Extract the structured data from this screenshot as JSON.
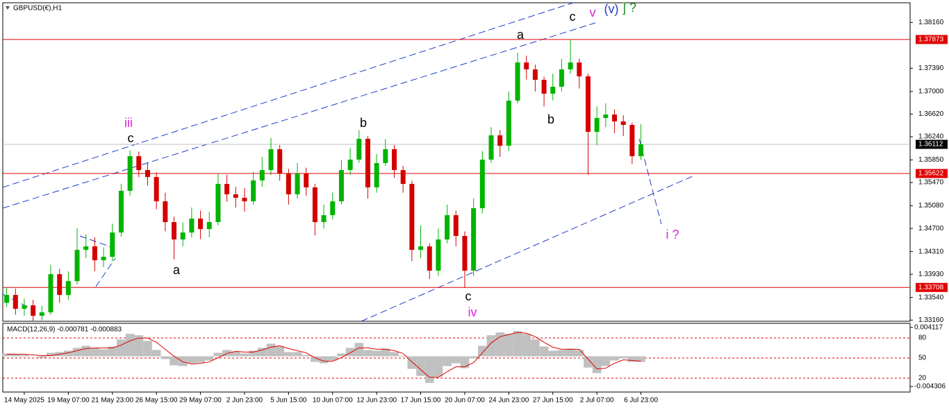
{
  "chart_data": [
    {
      "type": "candlestick",
      "title": "GBPUSD(€),H1",
      "categories": [
        null,
        null,
        "14 May 2025",
        null,
        null,
        null,
        null,
        "19 May 07:00",
        null,
        null,
        null,
        null,
        "21 May 23:00",
        null,
        null,
        null,
        null,
        "26 May 15:00",
        null,
        null,
        null,
        null,
        "29 May 07:00",
        null,
        null,
        null,
        null,
        "2 Jun 23:00",
        null,
        null,
        null,
        null,
        "5 Jun 15:00",
        null,
        null,
        null,
        null,
        "10 Jun 07:00",
        null,
        null,
        null,
        null,
        "12 Jun 23:00",
        null,
        null,
        null,
        null,
        "17 Jun 15:00",
        null,
        null,
        null,
        null,
        "20 Jun 07:00",
        null,
        null,
        null,
        null,
        "24 Jun 23:00",
        null,
        null,
        null,
        null,
        "27 Jun 15:00",
        null,
        null,
        null,
        null,
        "2 Jul 07:00",
        null,
        null,
        null,
        null,
        "6 Jul 23:00"
      ],
      "open": [
        1.3345,
        1.33582,
        1.33349,
        1.33407,
        1.33232,
        1.3329,
        1.33931,
        1.33582,
        1.33815,
        1.34339,
        1.34398,
        1.34165,
        1.34223,
        1.34631,
        1.35331,
        1.35913,
        1.3568,
        1.35563,
        1.35155,
        1.34806,
        1.34514,
        1.34631,
        1.34864,
        1.34689,
        1.34806,
        1.35447,
        1.35272,
        1.35214,
        1.35155,
        1.35505,
        1.3568,
        1.3603,
        1.35622,
        1.35272,
        1.35622,
        1.35389,
        1.34806,
        1.34922,
        1.35155,
        1.3568,
        1.35855,
        1.36205,
        1.35389,
        1.35797,
        1.3603,
        1.3568,
        1.35447,
        1.34339,
        1.34398,
        1.3399,
        1.34514,
        1.34922,
        1.34573,
        1.3399,
        1.35039,
        1.35855,
        1.36263,
        1.36088,
        1.36846,
        1.37487,
        1.37371,
        1.37196,
        1.36963,
        1.3708,
        1.37371,
        1.37487,
        1.37254,
        1.36322,
        1.36555,
        1.36613,
        1.36497,
        1.36438,
        1.35913
      ],
      "high": [
        1.337,
        1.3369,
        1.3352,
        1.335,
        1.334,
        1.3409,
        1.3402,
        1.3398,
        1.347,
        1.346,
        1.3455,
        1.3438,
        1.3478,
        1.3545,
        1.3601,
        1.3599,
        1.358,
        1.3564,
        1.353,
        1.349,
        1.348,
        1.3505,
        1.35,
        1.3498,
        1.3562,
        1.356,
        1.354,
        1.3538,
        1.3565,
        1.359,
        1.3622,
        1.361,
        1.357,
        1.358,
        1.3572,
        1.3545,
        1.351,
        1.353,
        1.3585,
        1.3605,
        1.3635,
        1.3625,
        1.3595,
        1.362,
        1.361,
        1.3575,
        1.355,
        1.3475,
        1.3445,
        1.347,
        1.351,
        1.35,
        1.3465,
        1.352,
        1.36,
        1.364,
        1.3635,
        1.37,
        1.3765,
        1.376,
        1.3745,
        1.3725,
        1.373,
        1.3755,
        1.3787,
        1.3755,
        1.373,
        1.3675,
        1.368,
        1.367,
        1.366,
        1.3648,
        1.3645
      ],
      "low": [
        1.3338,
        1.3325,
        1.3323,
        1.3315,
        1.3316,
        1.3325,
        1.3345,
        1.335,
        1.3376,
        1.342,
        1.3398,
        1.3405,
        1.3415,
        1.3456,
        1.3525,
        1.3556,
        1.3542,
        1.3502,
        1.3465,
        1.3418,
        1.344,
        1.3455,
        1.3452,
        1.3455,
        1.3475,
        1.3515,
        1.3505,
        1.3498,
        1.351,
        1.354,
        1.356,
        1.355,
        1.351,
        1.352,
        1.3525,
        1.3458,
        1.347,
        1.3485,
        1.351,
        1.356,
        1.358,
        1.352,
        1.353,
        1.3575,
        1.3555,
        1.353,
        1.3415,
        1.342,
        1.3385,
        1.339,
        1.3445,
        1.344,
        1.337,
        1.339,
        1.3495,
        1.358,
        1.359,
        1.36,
        1.368,
        1.372,
        1.37,
        1.3675,
        1.3685,
        1.37,
        1.373,
        1.3705,
        1.356,
        1.361,
        1.364,
        1.363,
        1.3625,
        1.3578,
        1.3585
      ],
      "close": [
        1.33582,
        1.33349,
        1.33407,
        1.33232,
        1.3329,
        1.33931,
        1.33582,
        1.33815,
        1.34339,
        1.34398,
        1.34165,
        1.34223,
        1.34631,
        1.35331,
        1.35913,
        1.3568,
        1.35563,
        1.35155,
        1.34806,
        1.34514,
        1.34631,
        1.34864,
        1.34689,
        1.34806,
        1.35447,
        1.35272,
        1.35214,
        1.35155,
        1.35505,
        1.3568,
        1.3603,
        1.35622,
        1.35272,
        1.35622,
        1.35389,
        1.34806,
        1.34922,
        1.35155,
        1.3568,
        1.35855,
        1.36205,
        1.35389,
        1.35797,
        1.3603,
        1.3568,
        1.35447,
        1.34339,
        1.34398,
        1.3399,
        1.34514,
        1.34922,
        1.34573,
        1.3399,
        1.35039,
        1.35855,
        1.36263,
        1.36088,
        1.36846,
        1.37487,
        1.37371,
        1.37196,
        1.36963,
        1.3708,
        1.37371,
        1.37487,
        1.37254,
        1.36322,
        1.36555,
        1.36613,
        1.36497,
        1.36438,
        1.35913,
        1.36112
      ],
      "up_color": "#00b400",
      "down_color": "#d40000",
      "ylim": [
        1.3314,
        1.3849
      ],
      "yticks": [
        {
          "value": 1.3816,
          "label": "1.38160"
        },
        {
          "value": 1.3739,
          "label": "1.37390"
        },
        {
          "value": 1.37,
          "label": "1.37000"
        },
        {
          "value": 1.3662,
          "label": "1.36620"
        },
        {
          "value": 1.3624,
          "label": "1.36240"
        },
        {
          "value": 1.3585,
          "label": "1.35850"
        },
        {
          "value": 1.3547,
          "label": "1.35470"
        },
        {
          "value": 1.3508,
          "label": "1.35080"
        },
        {
          "value": 1.347,
          "label": "1.34700"
        },
        {
          "value": 1.3431,
          "label": "1.34310"
        },
        {
          "value": 1.3393,
          "label": "1.33930"
        },
        {
          "value": 1.3354,
          "label": "1.33540"
        },
        {
          "value": 1.3316,
          "label": "1.33160"
        }
      ],
      "levels": [
        {
          "value": 1.37873,
          "label": "1.37873",
          "color": "#e00000"
        },
        {
          "value": 1.35622,
          "label": "1.35622",
          "color": "#e00000"
        },
        {
          "value": 1.33708,
          "label": "1.33708",
          "color": "#e00000"
        }
      ],
      "current_price": {
        "value": 1.36112,
        "label": "1.36112",
        "color": "#c0c0c0"
      },
      "annotations": [
        {
          "text": "iii",
          "color": "#e020e0"
        },
        {
          "text": "c",
          "color": "#000000"
        },
        {
          "text": "a",
          "color": "#000000"
        },
        {
          "text": "b",
          "color": "#000000"
        },
        {
          "text": "c",
          "color": "#000000"
        },
        {
          "text": "iv",
          "color": "#e020e0"
        },
        {
          "text": "a",
          "color": "#000000"
        },
        {
          "text": "b",
          "color": "#000000"
        },
        {
          "text": "c",
          "color": "#000000"
        },
        {
          "text": "v",
          "color": "#e020e0"
        },
        {
          "text": "(v)",
          "color": "#1e3cc8"
        },
        {
          "text": "] ?",
          "color": "#1a8a1a"
        },
        {
          "text": "i ?",
          "color": "#e020e0"
        }
      ]
    },
    {
      "type": "macd",
      "title": "MACD(12,26,9) -0.000781 -0.000883",
      "main": [
        0.0004,
        0.0003,
        0.0002,
        0.0,
        -0.0002,
        0.0005,
        0.0006,
        0.0008,
        0.0012,
        0.0015,
        0.0012,
        0.001,
        0.0014,
        0.0024,
        0.0032,
        0.003,
        0.0022,
        0.0009,
        -0.0004,
        -0.0013,
        -0.0014,
        -0.001,
        -0.0009,
        -0.0006,
        0.0005,
        0.0009,
        0.0007,
        0.0004,
        0.0008,
        0.0012,
        0.0018,
        0.0014,
        0.0006,
        0.0006,
        0.0002,
        -0.0008,
        -0.001,
        -0.0006,
        0.0004,
        0.0012,
        0.0019,
        0.0009,
        0.0008,
        0.0011,
        0.0006,
        0.0001,
        -0.0018,
        -0.0028,
        -0.0038,
        -0.0029,
        -0.0014,
        -0.001,
        -0.0017,
        -0.0003,
        0.0015,
        0.003,
        0.0034,
        0.0032,
        0.0036,
        0.0032,
        0.0024,
        0.0014,
        0.0008,
        0.0009,
        0.0011,
        0.0009,
        -0.0016,
        -0.0024,
        -0.0014,
        -0.0006,
        -0.0003,
        -0.0008,
        -0.0008
      ],
      "signal": [
        0.0003,
        0.0003,
        0.0003,
        0.0002,
        0.0001,
        0.0001,
        0.0003,
        0.0005,
        0.0008,
        0.0011,
        0.0012,
        0.0012,
        0.0012,
        0.0016,
        0.0022,
        0.0026,
        0.0026,
        0.002,
        0.001,
        0.0,
        -0.0008,
        -0.0011,
        -0.001,
        -0.0008,
        -0.0002,
        0.0004,
        0.0007,
        0.0006,
        0.0006,
        0.0009,
        0.0013,
        0.0015,
        0.0011,
        0.0008,
        0.0005,
        -0.0002,
        -0.0007,
        -0.0007,
        -0.0002,
        0.0005,
        0.0012,
        0.0012,
        0.001,
        0.001,
        0.0008,
        0.0004,
        -0.0008,
        -0.0019,
        -0.003,
        -0.003,
        -0.0022,
        -0.0015,
        -0.0015,
        -0.0009,
        0.0005,
        0.0019,
        0.0028,
        0.0031,
        0.0034,
        0.0033,
        0.0028,
        0.002,
        0.0013,
        0.001,
        0.001,
        0.001,
        -0.0004,
        -0.0018,
        -0.0017,
        -0.001,
        -0.0005,
        -0.0006,
        -0.0007
      ],
      "main_color": "#c0c0c0",
      "signal_color": "#e00000",
      "ylim": [
        -0.005,
        0.0046
      ],
      "yticks": [
        {
          "value": 0.004117,
          "label": "0.004117"
        },
        {
          "value": -0.004306,
          "label": "-0.004306"
        }
      ],
      "level_labels": [
        "80",
        "50",
        "20"
      ]
    }
  ]
}
